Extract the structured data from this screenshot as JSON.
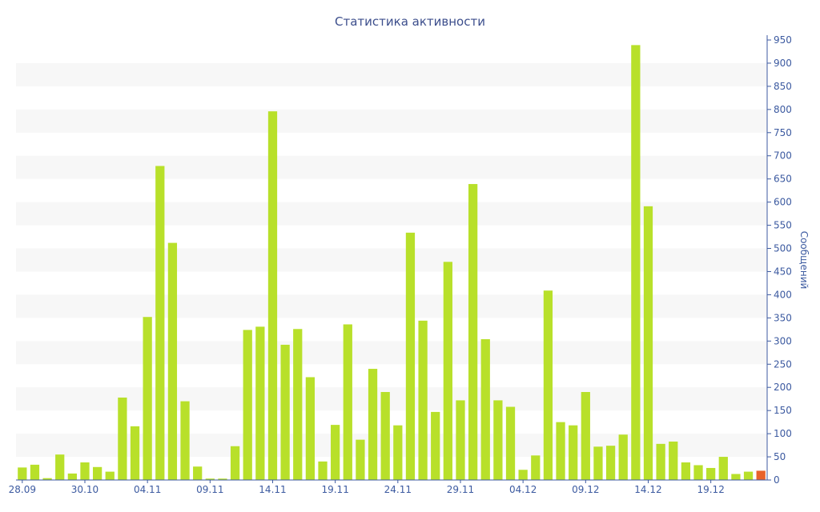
{
  "chart_data": {
    "type": "bar",
    "title": "Статистика активности",
    "ylabel": "Сообщений",
    "xlabel": "",
    "ylim": [
      0,
      950
    ],
    "y_ticks": [
      0,
      50,
      100,
      150,
      200,
      250,
      300,
      350,
      400,
      450,
      500,
      550,
      600,
      650,
      700,
      750,
      800,
      850,
      900,
      950
    ],
    "x_tick_labels": [
      "28.09",
      "30.10",
      "04.11",
      "09.11",
      "14.11",
      "19.11",
      "24.11",
      "29.11",
      "04.12",
      "09.12",
      "14.12",
      "19.12"
    ],
    "bar_color": "#b8e02a",
    "highlight_color": "#e8622a",
    "band_color": "#f7f7f7",
    "axis_color": "#3c5aa0",
    "values": [
      27,
      33,
      4,
      55,
      14,
      38,
      28,
      18,
      178,
      116,
      352,
      678,
      512,
      170,
      29,
      3,
      3,
      73,
      324,
      331,
      796,
      292,
      326,
      222,
      40,
      119,
      336,
      87,
      240,
      190,
      118,
      534,
      344,
      147,
      471,
      172,
      639,
      304,
      172,
      158,
      22,
      53,
      409,
      125,
      118,
      190,
      72,
      74,
      98,
      939,
      591,
      78,
      83,
      38,
      32,
      26,
      50,
      13,
      18,
      20
    ],
    "highlight_index": 59
  }
}
